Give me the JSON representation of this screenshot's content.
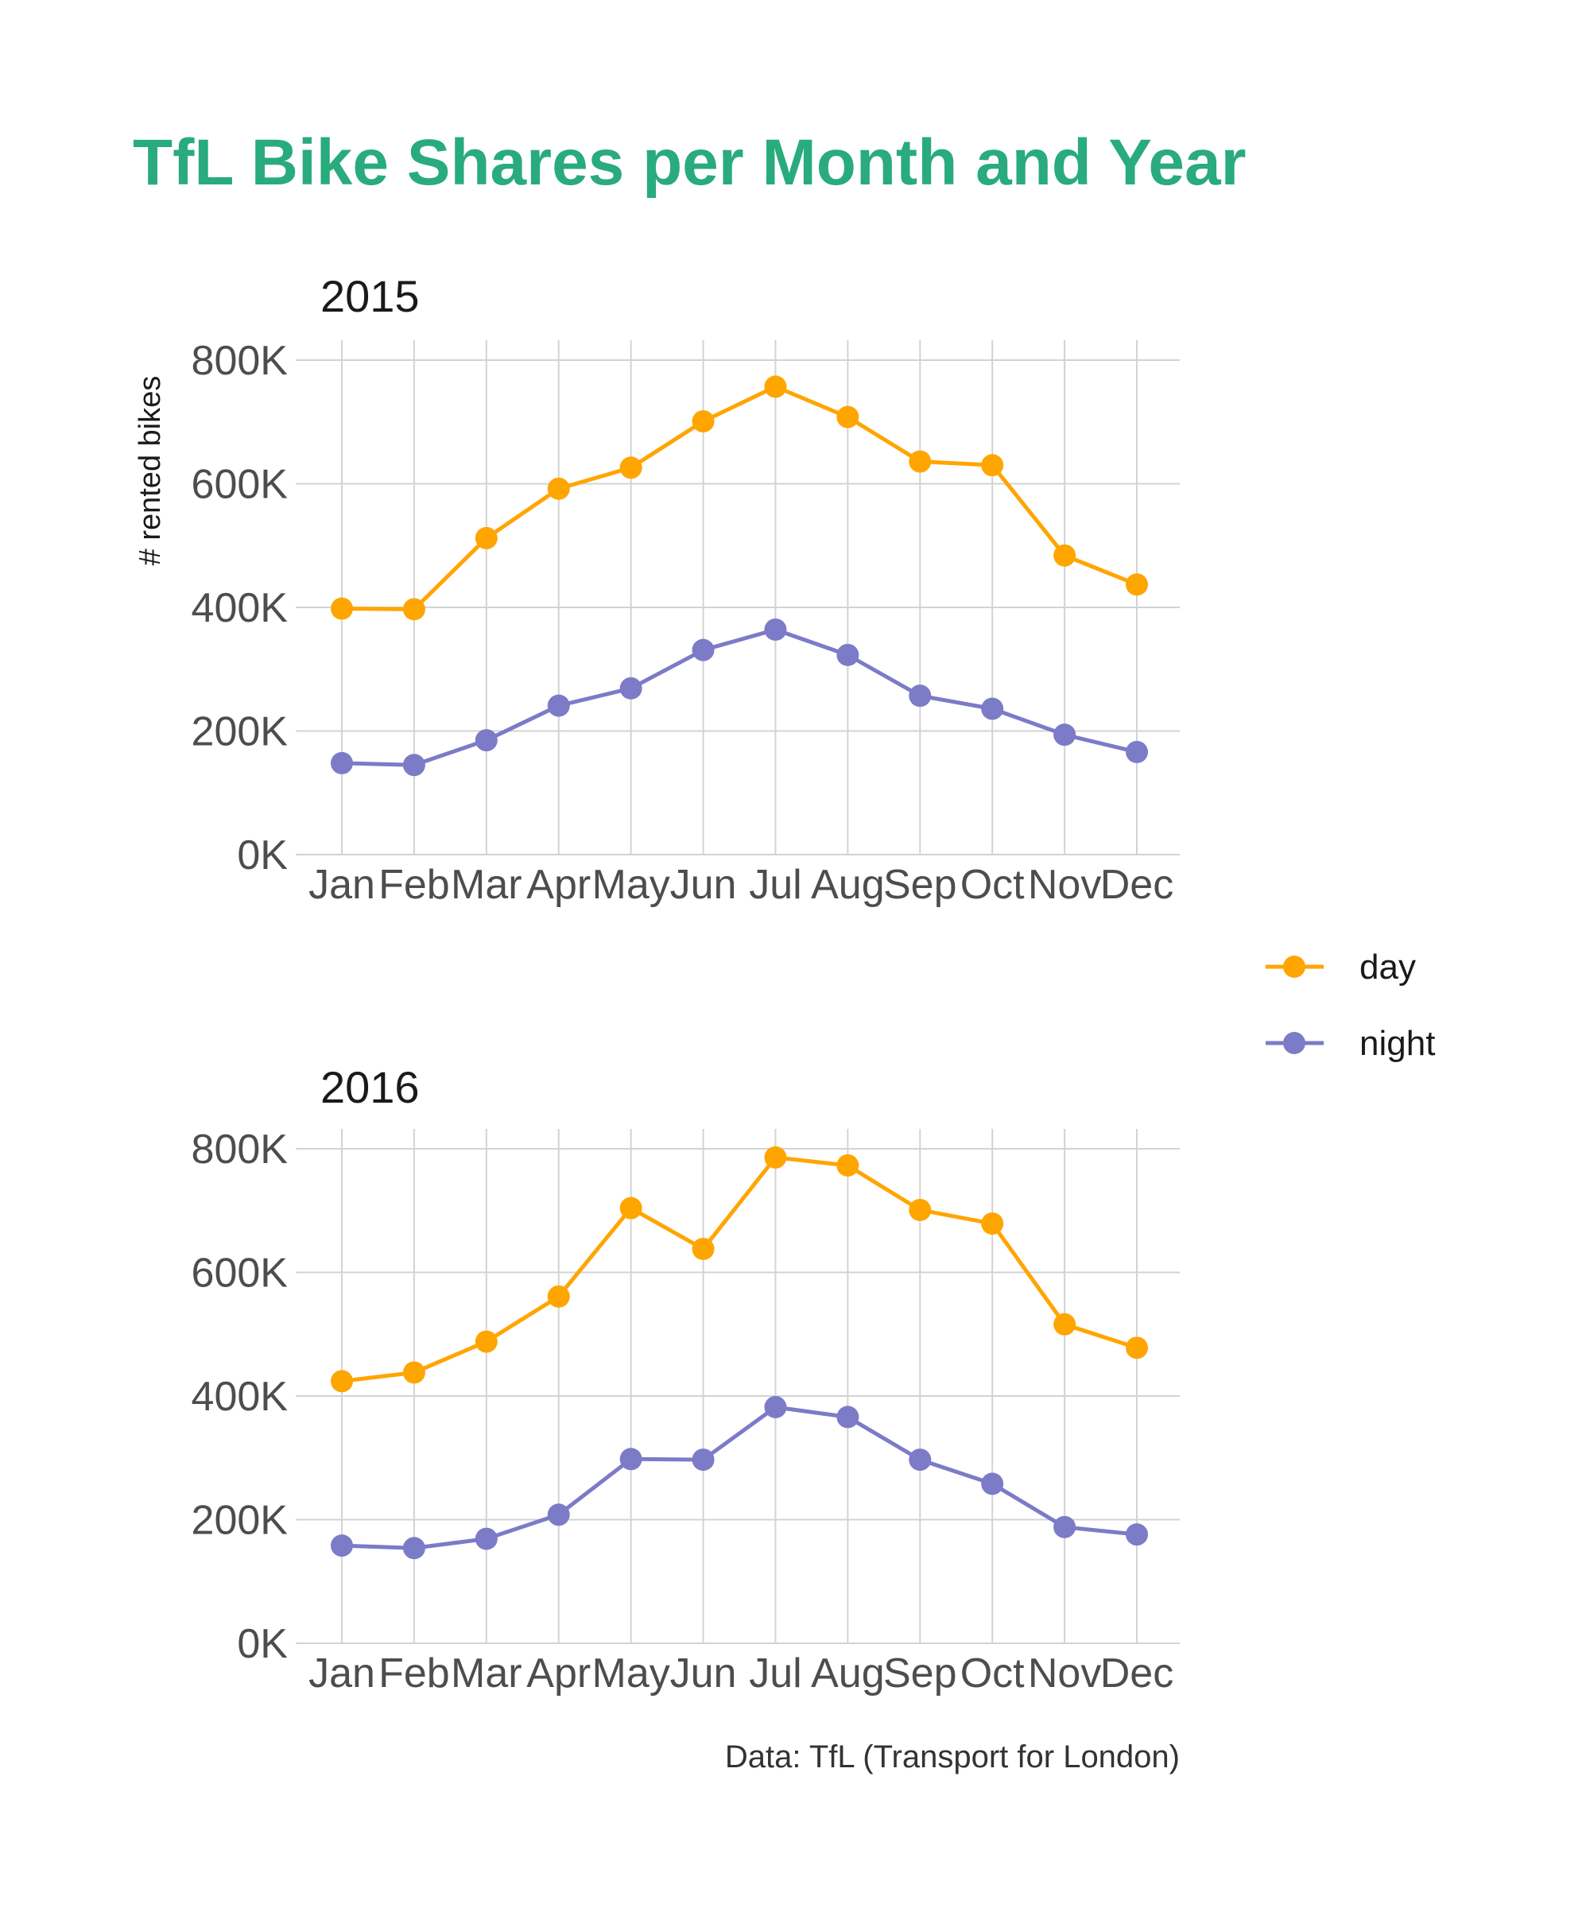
{
  "chart_data": {
    "type": "line",
    "title": "TfL Bike Shares per Month and Year",
    "caption": "Data: TfL (Transport for London)",
    "ylabel": "# rented bikes",
    "ylim": [
      0,
      800000
    ],
    "y_ticks": [
      0,
      200000,
      400000,
      600000,
      800000
    ],
    "y_tick_labels": [
      "0K",
      "200K",
      "400K",
      "600K",
      "800K"
    ],
    "categories": [
      "Jan",
      "Feb",
      "Mar",
      "Apr",
      "May",
      "Jun",
      "Jul",
      "Aug",
      "Sep",
      "Oct",
      "Nov",
      "Dec"
    ],
    "grid": true,
    "legend": {
      "position": "right",
      "entries": [
        {
          "name": "day",
          "color": "#FFA500"
        },
        {
          "name": "night",
          "color": "#7B7BC8"
        }
      ]
    },
    "panels": [
      {
        "title": "2015",
        "series": [
          {
            "name": "day",
            "values": [
              398000,
              397000,
              512000,
              592000,
              626000,
              701000,
              757000,
              708000,
              636000,
              630000,
              484000,
              437000
            ]
          },
          {
            "name": "night",
            "values": [
              148000,
              145000,
              185000,
              241000,
              269000,
              331000,
              364000,
              323000,
              257000,
              236000,
              194000,
              166000
            ]
          }
        ]
      },
      {
        "title": "2016",
        "series": [
          {
            "name": "day",
            "values": [
              424000,
              438000,
              488000,
              561000,
              704000,
              638000,
              786000,
              773000,
              701000,
              679000,
              516000,
              478000
            ]
          },
          {
            "name": "night",
            "values": [
              158000,
              154000,
              169000,
              208000,
              298000,
              297000,
              382000,
              366000,
              297000,
              258000,
              188000,
              176000
            ]
          }
        ]
      }
    ]
  },
  "colors": {
    "title": "#29AB7D",
    "day": "#FFA500",
    "night": "#7B7BC8"
  }
}
